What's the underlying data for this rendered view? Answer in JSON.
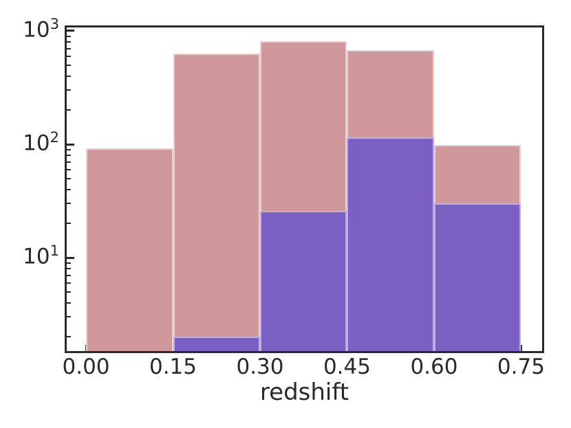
{
  "figure": {
    "background": "#ffffff",
    "axis_color": "#2a2a2a"
  },
  "chart_data": {
    "type": "histogram",
    "title": "",
    "xlabel": "redshift",
    "ylabel": "",
    "yscale": "log",
    "grid": false,
    "legend": false,
    "xlim": [
      -0.0356,
      0.7886
    ],
    "ylim": [
      1.48,
      1102
    ],
    "bin_edges": [
      0.0,
      0.15,
      0.3,
      0.45,
      0.6,
      0.75
    ],
    "x_tick_values": [
      0.0,
      0.15,
      0.3,
      0.45,
      0.6,
      0.75
    ],
    "x_tick_labels": [
      "0.00",
      "0.15",
      "0.30",
      "0.45",
      "0.60",
      "0.75"
    ],
    "y_ticks": [
      {
        "value": 10,
        "base": "10",
        "exponent": "1"
      },
      {
        "value": 100,
        "base": "10",
        "exponent": "2"
      },
      {
        "value": 1000,
        "base": "10",
        "exponent": "3"
      }
    ],
    "series": [
      {
        "name": "pink",
        "color": "#D0989A",
        "edge_color": "rgba(255,255,255,0.55)",
        "values": [
          92,
          635,
          815,
          680,
          98
        ]
      },
      {
        "name": "purple",
        "color": "#7B5FC3",
        "edge_color": "rgba(255,255,255,0.50)",
        "values": [
          0,
          2,
          26,
          115,
          30
        ]
      }
    ]
  }
}
